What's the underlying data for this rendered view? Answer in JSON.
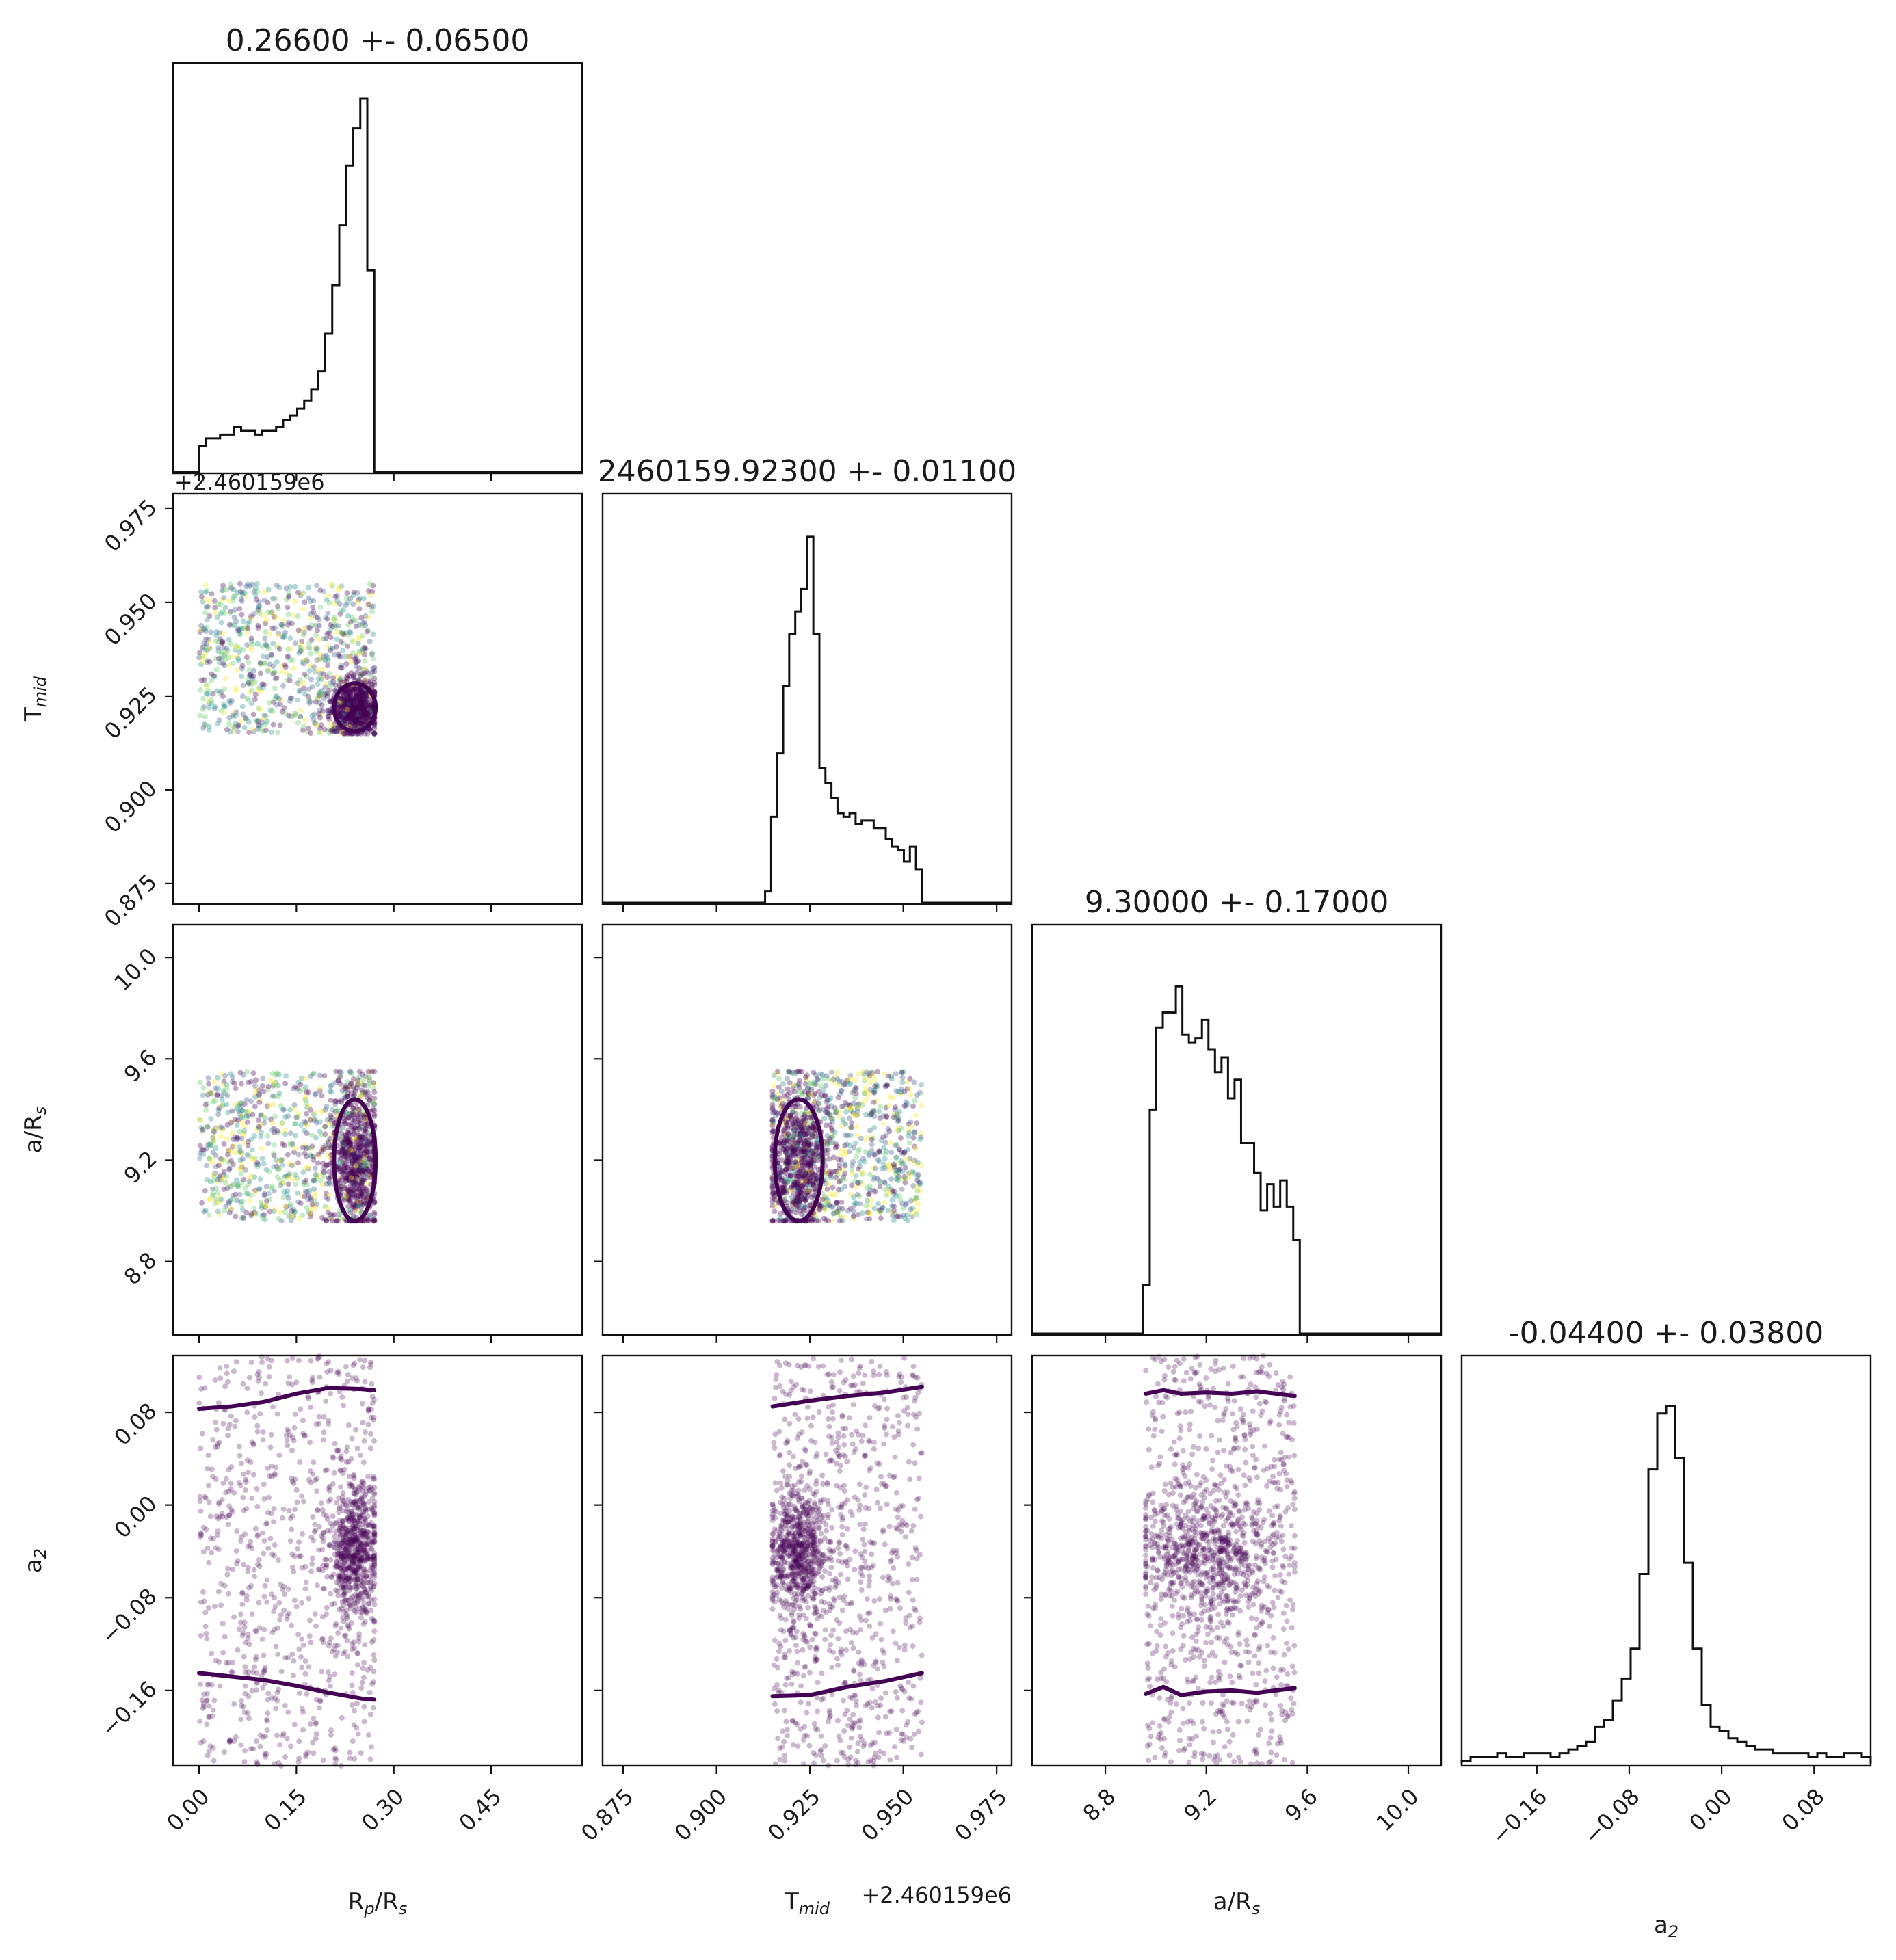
{
  "chart_data": {
    "type": "scatter",
    "parameters": [
      {
        "key": "rp",
        "label": "R_p/R_s",
        "label_main": "R",
        "label_sub": "p",
        "label_tail": "/R",
        "label_sub2": "s",
        "title": "0.26600 +- 0.06500",
        "range": [
          -0.04,
          0.59
        ],
        "ticks": [
          0.0,
          0.15,
          0.3,
          0.45
        ],
        "tick_labels": [
          "0.00",
          "0.15",
          "0.30",
          "0.45"
        ],
        "offset": "",
        "hist_range": [
          0.0,
          0.27
        ],
        "hist": [
          0.07,
          0.09,
          0.09,
          0.1,
          0.1,
          0.12,
          0.11,
          0.11,
          0.1,
          0.11,
          0.11,
          0.12,
          0.14,
          0.15,
          0.17,
          0.19,
          0.22,
          0.27,
          0.37,
          0.5,
          0.66,
          0.82,
          0.92,
          1.0,
          0.54
        ]
      },
      {
        "key": "tmid",
        "label": "T_mid",
        "label_main": "T",
        "label_sub": "mid",
        "label_tail": "",
        "label_sub2": "",
        "title": "2460159.92300 +- 0.01100",
        "range": [
          0.8695,
          0.979
        ],
        "ticks": [
          0.875,
          0.9,
          0.925,
          0.95,
          0.975
        ],
        "tick_labels": [
          "0.875",
          "0.900",
          "0.925",
          "0.950",
          "0.975"
        ],
        "offset": "+2.460159e6",
        "hist_range": [
          0.913,
          0.955
        ],
        "hist": [
          0.03,
          0.23,
          0.4,
          0.58,
          0.72,
          0.78,
          0.84,
          0.98,
          0.72,
          0.36,
          0.32,
          0.28,
          0.24,
          0.23,
          0.24,
          0.21,
          0.22,
          0.22,
          0.2,
          0.2,
          0.17,
          0.15,
          0.14,
          0.11,
          0.15,
          0.09
        ]
      },
      {
        "key": "ars",
        "label": "a/R_s",
        "label_main": "a/R",
        "label_sub": "s",
        "label_tail": "",
        "label_sub2": "",
        "title": "9.30000 +- 0.17000",
        "range": [
          8.51,
          10.13
        ],
        "ticks": [
          8.8,
          9.2,
          9.6,
          10.0
        ],
        "tick_labels": [
          "8.8",
          "9.2",
          "9.6",
          "10.0"
        ],
        "offset": "",
        "hist_range": [
          8.95,
          9.57
        ],
        "hist": [
          0.13,
          0.6,
          0.82,
          0.86,
          0.86,
          0.93,
          0.8,
          0.78,
          0.79,
          0.84,
          0.76,
          0.7,
          0.74,
          0.63,
          0.68,
          0.51,
          0.51,
          0.43,
          0.33,
          0.4,
          0.34,
          0.41,
          0.34,
          0.25
        ]
      },
      {
        "key": "a2",
        "label": "a_2",
        "label_main": "a",
        "label_sub": "2",
        "label_tail": "",
        "label_sub2": "",
        "title": "-0.04400 +- 0.03800",
        "range": [
          -0.225,
          0.129
        ],
        "ticks": [
          -0.16,
          -0.08,
          0.0,
          0.08
        ],
        "tick_labels": [
          "−0.16",
          "−0.08",
          "0.00",
          "0.08"
        ],
        "offset": "",
        "hist_range": [
          -0.225,
          0.129
        ],
        "hist": [
          0.01,
          0.02,
          0.02,
          0.02,
          0.03,
          0.02,
          0.02,
          0.03,
          0.03,
          0.03,
          0.02,
          0.03,
          0.04,
          0.05,
          0.06,
          0.1,
          0.12,
          0.17,
          0.23,
          0.31,
          0.51,
          0.79,
          0.94,
          0.96,
          0.82,
          0.54,
          0.31,
          0.16,
          0.1,
          0.09,
          0.07,
          0.06,
          0.05,
          0.04,
          0.04,
          0.03,
          0.03,
          0.03,
          0.03,
          0.02,
          0.03,
          0.02,
          0.02,
          0.03,
          0.03,
          0.02
        ]
      }
    ],
    "samples": {
      "rp": {
        "uniform": [
          0.0,
          0.27
        ],
        "concentrated": [
          0.24,
          0.02
        ]
      },
      "tmid": {
        "uniform": [
          0.915,
          0.955
        ],
        "concentrated": [
          0.922,
          0.004
        ]
      },
      "ars": {
        "uniform": [
          8.96,
          9.55
        ],
        "concentrated": [
          9.2,
          0.15
        ]
      },
      "a2": {
        "uniform": [
          -0.225,
          0.129
        ],
        "concentrated": [
          -0.04,
          0.03
        ]
      }
    },
    "colormap": [
      "#440154",
      "#3b528b",
      "#21918c",
      "#5ec962",
      "#fde725"
    ],
    "bands": {
      "rp": {
        "x": [
          0.0,
          0.05,
          0.1,
          0.15,
          0.2,
          0.25,
          0.27
        ],
        "upper": [
          0.083,
          0.085,
          0.089,
          0.096,
          0.101,
          0.1,
          0.099
        ],
        "lower": [
          -0.145,
          -0.148,
          -0.151,
          -0.156,
          -0.162,
          -0.167,
          -0.168
        ]
      },
      "tmid": {
        "x": [
          0.915,
          0.925,
          0.935,
          0.945,
          0.955
        ],
        "upper": [
          0.085,
          0.09,
          0.094,
          0.097,
          0.102
        ],
        "lower": [
          -0.165,
          -0.164,
          -0.157,
          -0.152,
          -0.145
        ]
      },
      "ars": {
        "x": [
          8.96,
          9.03,
          9.1,
          9.2,
          9.3,
          9.4,
          9.55
        ],
        "upper": [
          0.096,
          0.099,
          0.096,
          0.097,
          0.096,
          0.098,
          0.094
        ],
        "lower": [
          -0.163,
          -0.157,
          -0.164,
          -0.161,
          -0.16,
          -0.162,
          -0.158
        ]
      }
    }
  }
}
